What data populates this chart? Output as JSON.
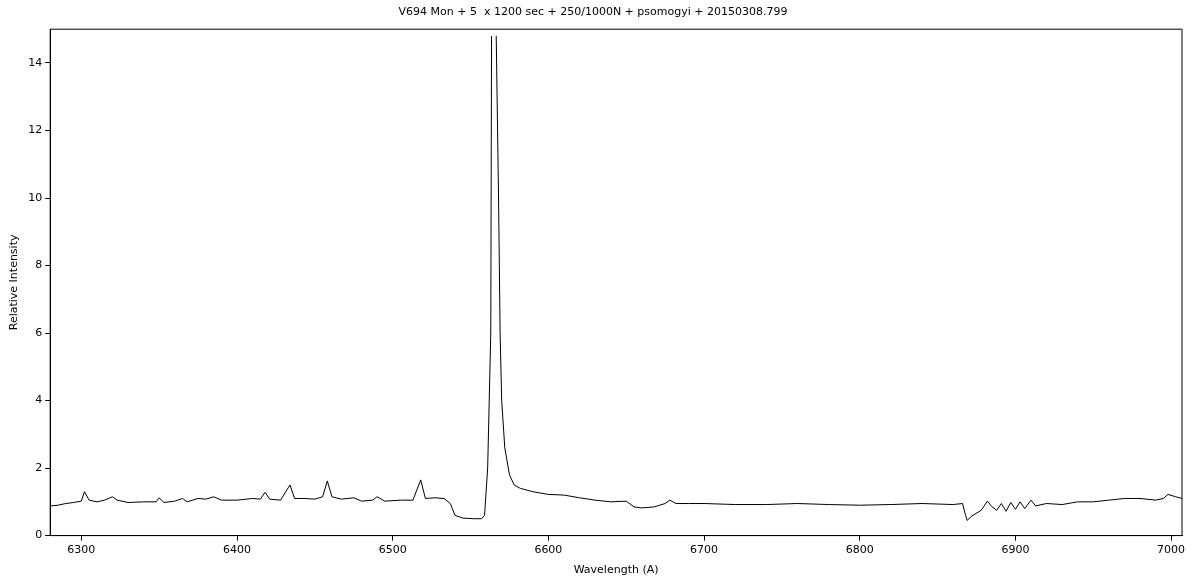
{
  "chart_data": {
    "type": "line",
    "title": "V694 Mon + 5  x 1200 sec + 250/1000N + psomogyi + 20150308.799",
    "xlabel": "Wavelength (A)",
    "ylabel": "Relative Intensity",
    "x": [
      6280,
      6285,
      6290,
      6295,
      6300,
      6302,
      6305,
      6310,
      6315,
      6320,
      6323,
      6330,
      6340,
      6348,
      6350,
      6353,
      6360,
      6365,
      6368,
      6375,
      6380,
      6385,
      6390,
      6400,
      6410,
      6415,
      6418,
      6421,
      6428,
      6434,
      6437,
      6443,
      6450,
      6455,
      6458,
      6461,
      6467,
      6475,
      6480,
      6487,
      6490,
      6495,
      6505,
      6513,
      6518,
      6521,
      6527,
      6533,
      6537,
      6540,
      6545,
      6552,
      6557,
      6559,
      6561,
      6563,
      6563.5,
      6565,
      6566.5,
      6568,
      6569,
      6570,
      6572,
      6575,
      6578,
      6582,
      6590,
      6600,
      6610,
      6620,
      6630,
      6640,
      6650,
      6655,
      6660,
      6668,
      6675,
      6678,
      6682,
      6690,
      6700,
      6720,
      6740,
      6760,
      6780,
      6800,
      6820,
      6840,
      6860,
      6866,
      6868,
      6869,
      6872,
      6878,
      6882,
      6885,
      6888,
      6891,
      6894,
      6897,
      6900,
      6903,
      6906,
      6910,
      6913,
      6920,
      6930,
      6940,
      6950,
      6960,
      6970,
      6980,
      6990,
      6995,
      6998,
      7003,
      7007
    ],
    "series": [
      {
        "color": "#000000",
        "values": [
          0.88,
          0.9,
          0.95,
          0.98,
          1.02,
          1.3,
          1.05,
          1.0,
          1.05,
          1.15,
          1.05,
          0.98,
          1.0,
          1.0,
          1.12,
          0.98,
          1.02,
          1.1,
          1.0,
          1.1,
          1.08,
          1.15,
          1.05,
          1.05,
          1.1,
          1.08,
          1.28,
          1.08,
          1.05,
          1.5,
          1.1,
          1.1,
          1.08,
          1.15,
          1.62,
          1.15,
          1.08,
          1.12,
          1.02,
          1.05,
          1.15,
          1.02,
          1.05,
          1.05,
          1.65,
          1.1,
          1.12,
          1.1,
          0.95,
          0.6,
          0.52,
          0.5,
          0.5,
          0.6,
          2.0,
          6.0,
          14.8,
          null,
          14.8,
          10,
          6,
          4,
          2.6,
          1.8,
          1.5,
          1.4,
          1.3,
          1.22,
          1.2,
          1.12,
          1.05,
          1.0,
          1.02,
          0.85,
          0.82,
          0.85,
          0.95,
          1.05,
          0.95,
          0.95,
          0.95,
          0.92,
          0.92,
          0.95,
          0.92,
          0.9,
          0.92,
          0.95,
          0.92,
          0.95,
          0.6,
          0.45,
          0.58,
          0.75,
          1.02,
          0.85,
          0.75,
          0.95,
          0.72,
          0.98,
          0.78,
          1.0,
          0.8,
          1.05,
          0.88,
          0.95,
          0.92,
          1.0,
          1.0,
          1.05,
          1.1,
          1.1,
          1.05,
          1.1,
          1.22,
          1.15,
          1.1
        ]
      }
    ],
    "xlim": [
      6280,
      7007
    ],
    "xticks": [
      6300,
      6400,
      6500,
      6600,
      6700,
      6800,
      6900,
      7000
    ],
    "ylim": [
      0,
      15
    ],
    "yticks": [
      0,
      2,
      4,
      6,
      8,
      10,
      12,
      14
    ],
    "grid": false,
    "legend": false,
    "marker": "none",
    "line_style": "solid"
  }
}
